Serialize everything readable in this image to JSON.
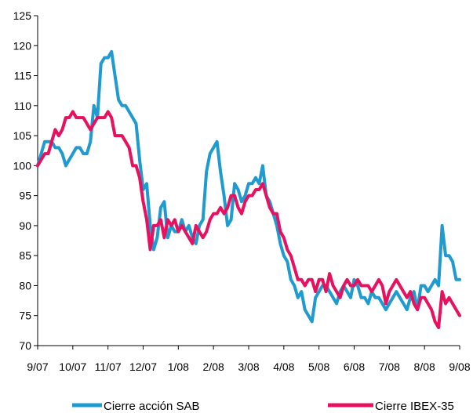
{
  "chart_data": {
    "type": "line",
    "title": "",
    "xlabel": "",
    "ylabel": "",
    "ylim": [
      70,
      125
    ],
    "yticks": [
      70,
      75,
      80,
      85,
      90,
      95,
      100,
      105,
      110,
      115,
      120,
      125
    ],
    "x_categories": [
      "9/07",
      "10/07",
      "11/07",
      "12/07",
      "1/08",
      "2/08",
      "3/08",
      "4/08",
      "5/08",
      "6/08",
      "7/08",
      "8/08",
      "9/08"
    ],
    "xlim": [
      0,
      12
    ],
    "grid": false,
    "legend_position": "bottom",
    "series": [
      {
        "name": "Cierre acción SAB",
        "color": "#1F9BCF",
        "x": [
          0,
          0.1,
          0.2,
          0.3,
          0.4,
          0.5,
          0.6,
          0.7,
          0.8,
          0.9,
          1.0,
          1.1,
          1.2,
          1.3,
          1.4,
          1.5,
          1.6,
          1.7,
          1.8,
          1.9,
          2.0,
          2.1,
          2.2,
          2.3,
          2.4,
          2.5,
          2.6,
          2.7,
          2.8,
          2.9,
          3.0,
          3.1,
          3.2,
          3.3,
          3.4,
          3.5,
          3.6,
          3.7,
          3.8,
          3.9,
          4.0,
          4.1,
          4.2,
          4.3,
          4.4,
          4.5,
          4.6,
          4.7,
          4.8,
          4.9,
          5.0,
          5.1,
          5.2,
          5.3,
          5.4,
          5.5,
          5.6,
          5.7,
          5.8,
          5.9,
          6.0,
          6.1,
          6.2,
          6.3,
          6.4,
          6.5,
          6.6,
          6.7,
          6.8,
          6.9,
          7.0,
          7.1,
          7.2,
          7.3,
          7.4,
          7.5,
          7.6,
          7.7,
          7.8,
          7.9,
          8.0,
          8.1,
          8.2,
          8.3,
          8.4,
          8.5,
          8.6,
          8.7,
          8.8,
          8.9,
          9.0,
          9.1,
          9.2,
          9.3,
          9.4,
          9.5,
          9.6,
          9.7,
          9.8,
          9.9,
          10.0,
          10.1,
          10.2,
          10.3,
          10.4,
          10.5,
          10.6,
          10.7,
          10.8,
          10.9,
          11.0,
          11.1,
          11.2,
          11.3,
          11.4,
          11.5,
          11.6,
          11.7,
          11.8,
          11.9,
          12.0
        ],
        "y": [
          100,
          102,
          104,
          104,
          104,
          103,
          103,
          102,
          100,
          101,
          102,
          103,
          103,
          102,
          102,
          104,
          110,
          108,
          117,
          118,
          118,
          119,
          115,
          111,
          110,
          110,
          109,
          108,
          107,
          101,
          96,
          97,
          90,
          86,
          88,
          93,
          94,
          88,
          90,
          89,
          89,
          91,
          89,
          90,
          88,
          87,
          90,
          91,
          99,
          102,
          103,
          104,
          99,
          95,
          90,
          91,
          97,
          96,
          94,
          95,
          97,
          97,
          98,
          97,
          100,
          95,
          94,
          92,
          90,
          87,
          85,
          84,
          81,
          80,
          78,
          79,
          76,
          75,
          74,
          78,
          79,
          80,
          80,
          79,
          78,
          77,
          79,
          80,
          79,
          78,
          81,
          80,
          78,
          78,
          77,
          79,
          78,
          78,
          77,
          76,
          77,
          78,
          79,
          78,
          77,
          76,
          78,
          79,
          76,
          80,
          80,
          79,
          80,
          81,
          80,
          90,
          85,
          85,
          84,
          81,
          81
        ]
      },
      {
        "name": "Cierre IBEX-35",
        "color": "#E8115F",
        "x": [
          0,
          0.1,
          0.2,
          0.3,
          0.4,
          0.5,
          0.6,
          0.7,
          0.8,
          0.9,
          1.0,
          1.1,
          1.2,
          1.3,
          1.4,
          1.5,
          1.6,
          1.7,
          1.8,
          1.9,
          2.0,
          2.1,
          2.2,
          2.3,
          2.4,
          2.5,
          2.6,
          2.7,
          2.8,
          2.9,
          3.0,
          3.1,
          3.2,
          3.3,
          3.4,
          3.5,
          3.6,
          3.7,
          3.8,
          3.9,
          4.0,
          4.1,
          4.2,
          4.3,
          4.4,
          4.5,
          4.6,
          4.7,
          4.8,
          4.9,
          5.0,
          5.1,
          5.2,
          5.3,
          5.4,
          5.5,
          5.6,
          5.7,
          5.8,
          5.9,
          6.0,
          6.1,
          6.2,
          6.3,
          6.4,
          6.5,
          6.6,
          6.7,
          6.8,
          6.9,
          7.0,
          7.1,
          7.2,
          7.3,
          7.4,
          7.5,
          7.6,
          7.7,
          7.8,
          7.9,
          8.0,
          8.1,
          8.2,
          8.3,
          8.4,
          8.5,
          8.6,
          8.7,
          8.8,
          8.9,
          9.0,
          9.1,
          9.2,
          9.3,
          9.4,
          9.5,
          9.6,
          9.7,
          9.8,
          9.9,
          10.0,
          10.1,
          10.2,
          10.3,
          10.4,
          10.5,
          10.6,
          10.7,
          10.8,
          10.9,
          11.0,
          11.1,
          11.2,
          11.3,
          11.4,
          11.5,
          11.6,
          11.7,
          11.8,
          11.9,
          12.0
        ],
        "y": [
          100,
          101,
          102,
          102,
          104,
          106,
          105,
          106,
          108,
          108,
          109,
          108,
          108,
          108,
          107,
          106,
          107,
          108,
          108,
          108,
          109,
          108,
          105,
          105,
          105,
          104,
          103,
          100,
          100,
          98,
          94,
          91,
          86,
          90,
          90,
          91,
          88,
          91,
          90,
          91,
          89,
          90,
          89,
          88,
          87,
          90,
          89,
          88,
          89,
          91,
          92,
          92,
          93,
          92,
          93,
          95,
          95,
          93,
          92,
          94,
          95,
          95,
          96,
          96,
          97,
          95,
          93,
          92,
          92,
          89,
          88,
          86,
          85,
          83,
          81,
          81,
          80,
          81,
          81,
          79,
          81,
          81,
          79,
          82,
          80,
          79,
          78,
          80,
          81,
          80,
          80,
          81,
          80,
          80,
          80,
          79,
          80,
          81,
          80,
          77,
          79,
          80,
          81,
          80,
          79,
          78,
          79,
          77,
          76,
          78,
          78,
          77,
          76,
          74,
          73,
          79,
          77,
          78,
          77,
          76,
          75
        ]
      }
    ]
  }
}
